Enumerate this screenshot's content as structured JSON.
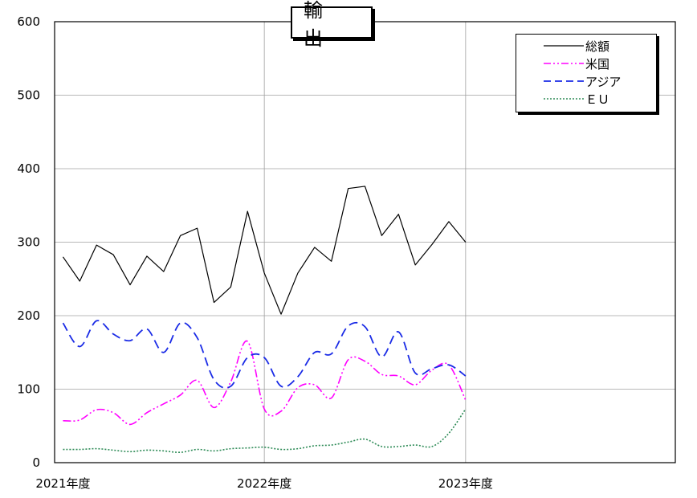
{
  "chart_data": {
    "type": "line",
    "title": "輸　出",
    "x_labels": [
      "2021年度",
      "2022年度",
      "2023年度"
    ],
    "x_label_positions": [
      0,
      12,
      24
    ],
    "xlim": [
      -0.5,
      36.5
    ],
    "ylim": [
      0,
      600
    ],
    "yticks": [
      0,
      100,
      200,
      300,
      400,
      500,
      600
    ],
    "grid": true,
    "legend_position": "top-right",
    "series": [
      {
        "name": "総額",
        "color": "#000000",
        "dash": "solid",
        "smooth": false,
        "values": [
          280,
          247,
          296,
          283,
          242,
          281,
          260,
          309,
          319,
          218,
          239,
          342,
          258,
          202,
          258,
          293,
          274,
          373,
          376,
          309,
          338,
          269,
          297,
          328,
          300
        ]
      },
      {
        "name": "米国",
        "color": "#ff00ff",
        "dash": "dashdotdot",
        "smooth": true,
        "values": [
          57,
          58,
          72,
          68,
          52,
          68,
          80,
          92,
          112,
          75,
          110,
          165,
          73,
          70,
          102,
          106,
          88,
          140,
          138,
          120,
          118,
          106,
          126,
          133,
          85
        ]
      },
      {
        "name": "アジア",
        "color": "#1a2be6",
        "dash": "dash",
        "smooth": true,
        "values": [
          190,
          158,
          193,
          175,
          166,
          182,
          150,
          190,
          170,
          113,
          104,
          143,
          143,
          104,
          117,
          150,
          148,
          186,
          185,
          144,
          178,
          122,
          128,
          133,
          118
        ]
      },
      {
        "name": "ＥＵ",
        "color": "#2e8b57",
        "dash": "dot",
        "smooth": true,
        "values": [
          18,
          18,
          19,
          17,
          15,
          17,
          16,
          14,
          18,
          16,
          19,
          20,
          21,
          18,
          19,
          23,
          24,
          28,
          32,
          22,
          22,
          24,
          22,
          40,
          73
        ]
      }
    ]
  }
}
